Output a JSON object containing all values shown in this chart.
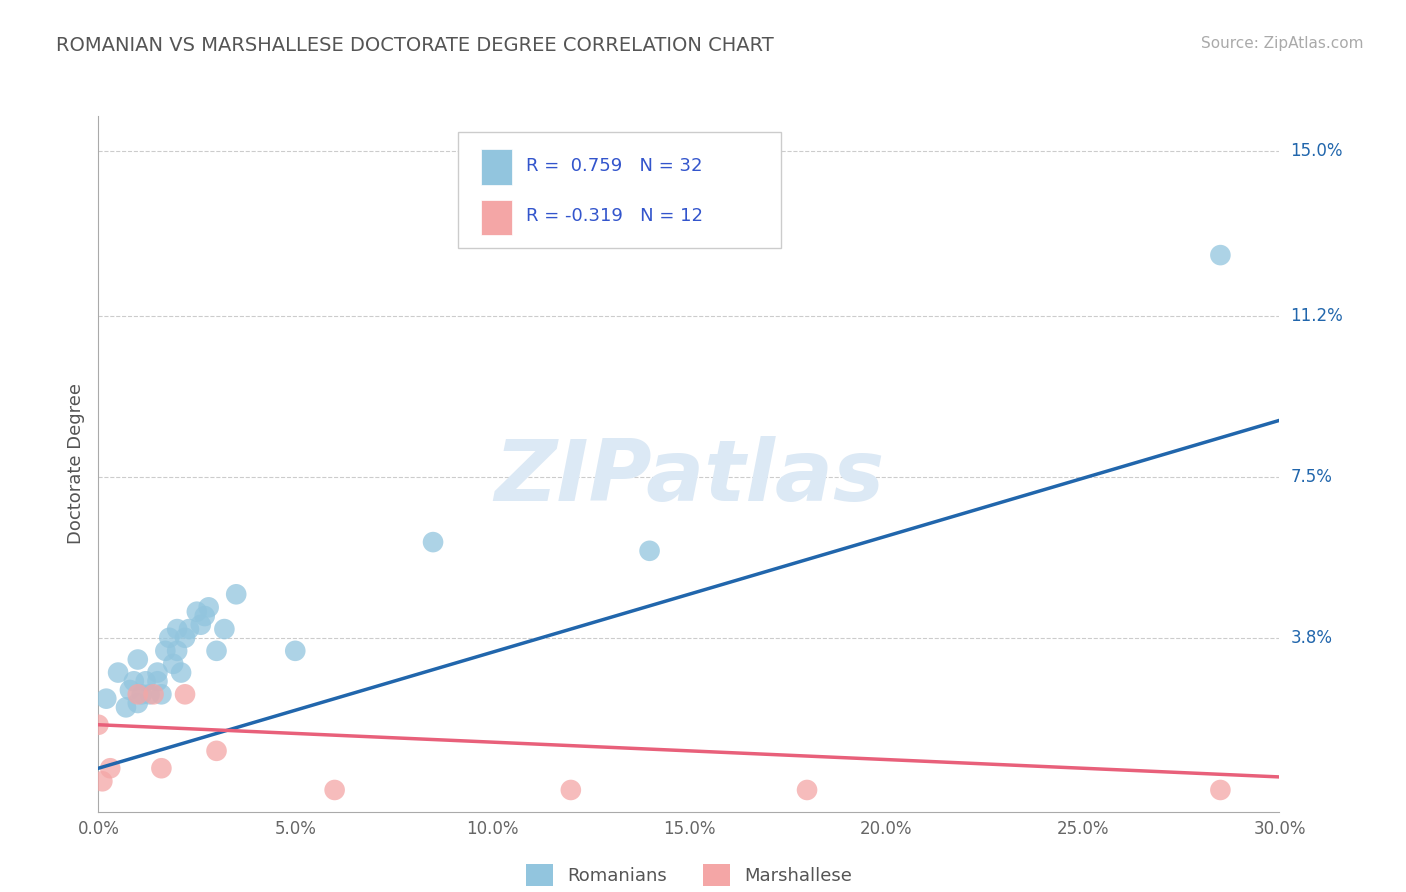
{
  "title": "ROMANIAN VS MARSHALLESE DOCTORATE DEGREE CORRELATION CHART",
  "source": "Source: ZipAtlas.com",
  "ylabel": "Doctorate Degree",
  "xlim": [
    0.0,
    0.3
  ],
  "ylim": [
    -0.002,
    0.158
  ],
  "xtick_labels": [
    "0.0%",
    "5.0%",
    "10.0%",
    "15.0%",
    "20.0%",
    "25.0%",
    "30.0%"
  ],
  "xtick_vals": [
    0.0,
    0.05,
    0.1,
    0.15,
    0.2,
    0.25,
    0.3
  ],
  "ytick_right_labels": [
    "3.8%",
    "7.5%",
    "11.2%",
    "15.0%"
  ],
  "ytick_right_vals": [
    0.038,
    0.075,
    0.112,
    0.15
  ],
  "r_romanian": 0.759,
  "n_romanian": 32,
  "r_marshallese": -0.319,
  "n_marshallese": 12,
  "blue_color": "#92c5de",
  "pink_color": "#f4a6a6",
  "blue_line_color": "#2166ac",
  "pink_line_color": "#e8607a",
  "title_color": "#555555",
  "legend_text_color": "#3355cc",
  "watermark_color": "#dce9f5",
  "background_color": "#ffffff",
  "grid_color": "#cccccc",
  "romanian_scatter_x": [
    0.002,
    0.005,
    0.007,
    0.008,
    0.009,
    0.01,
    0.01,
    0.011,
    0.012,
    0.013,
    0.015,
    0.015,
    0.016,
    0.017,
    0.018,
    0.019,
    0.02,
    0.02,
    0.021,
    0.022,
    0.023,
    0.025,
    0.026,
    0.027,
    0.028,
    0.03,
    0.032,
    0.035,
    0.05,
    0.085,
    0.14,
    0.285
  ],
  "romanian_scatter_y": [
    0.024,
    0.03,
    0.022,
    0.026,
    0.028,
    0.023,
    0.033,
    0.025,
    0.028,
    0.025,
    0.03,
    0.028,
    0.025,
    0.035,
    0.038,
    0.032,
    0.035,
    0.04,
    0.03,
    0.038,
    0.04,
    0.044,
    0.041,
    0.043,
    0.045,
    0.035,
    0.04,
    0.048,
    0.035,
    0.06,
    0.058,
    0.126
  ],
  "marshallese_scatter_x": [
    0.0,
    0.001,
    0.003,
    0.01,
    0.014,
    0.016,
    0.022,
    0.03,
    0.06,
    0.12,
    0.18,
    0.285
  ],
  "marshallese_scatter_y": [
    0.018,
    0.005,
    0.008,
    0.025,
    0.025,
    0.008,
    0.025,
    0.012,
    0.003,
    0.003,
    0.003,
    0.003
  ],
  "blue_line_x": [
    0.0,
    0.3
  ],
  "blue_line_y": [
    0.008,
    0.088
  ],
  "pink_line_x": [
    0.0,
    0.3
  ],
  "pink_line_y": [
    0.018,
    0.006
  ]
}
